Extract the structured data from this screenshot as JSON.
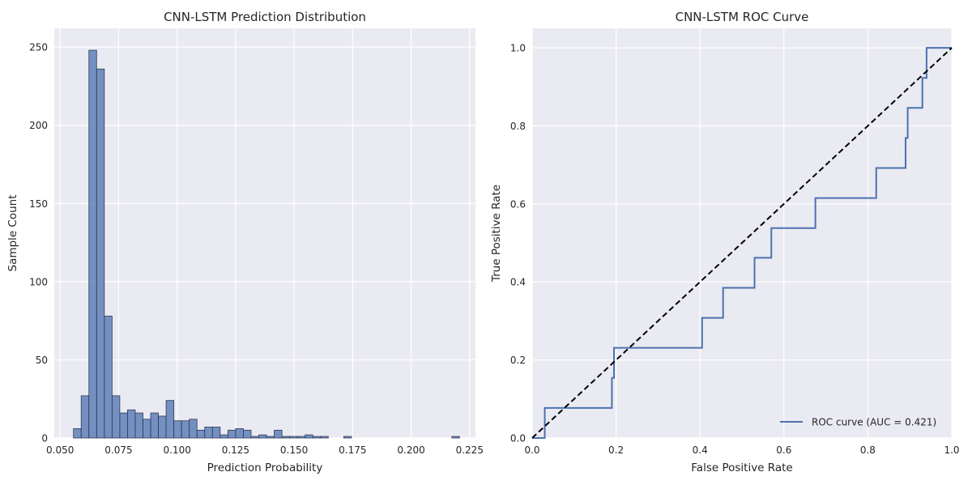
{
  "chart_data": [
    {
      "type": "bar",
      "title": "CNN-LSTM Prediction Distribution",
      "xlabel": "Prediction Probability",
      "ylabel": "Sample Count",
      "xlim": [
        0.0475,
        0.2275
      ],
      "ylim": [
        0,
        262
      ],
      "xticks": [
        0.05,
        0.075,
        0.1,
        0.125,
        0.15,
        0.175,
        0.2,
        0.225
      ],
      "xtick_labels": [
        "0.050",
        "0.075",
        "0.100",
        "0.125",
        "0.150",
        "0.175",
        "0.200",
        "0.225"
      ],
      "yticks": [
        0,
        50,
        100,
        150,
        200,
        250
      ],
      "ytick_labels": [
        "0",
        "50",
        "100",
        "150",
        "200",
        "250"
      ],
      "grid": true,
      "bin_edges": [
        0.0557,
        0.059,
        0.0623,
        0.0656,
        0.0689,
        0.0722,
        0.0755,
        0.0788,
        0.0821,
        0.0854,
        0.0887,
        0.092,
        0.0953,
        0.0986,
        0.1019,
        0.1052,
        0.1085,
        0.1118,
        0.1151,
        0.1184,
        0.1217,
        0.125,
        0.1283,
        0.1316,
        0.1349,
        0.1382,
        0.1415,
        0.1448,
        0.1481,
        0.1514,
        0.1547,
        0.158,
        0.1613,
        0.1646,
        0.1679,
        0.1712,
        0.1745,
        0.1778,
        0.1811,
        0.1844,
        0.1877,
        0.191,
        0.1943,
        0.1976,
        0.2009,
        0.2042,
        0.2075,
        0.2108,
        0.2141,
        0.2174,
        0.2207
      ],
      "values": [
        6,
        27,
        248,
        236,
        78,
        27,
        16,
        18,
        16,
        12,
        16,
        14,
        24,
        11,
        11,
        12,
        5,
        7,
        7,
        2,
        5,
        6,
        5,
        1,
        2,
        1,
        5,
        1,
        1,
        1,
        2,
        1,
        1,
        0,
        0,
        1,
        0,
        0,
        0,
        0,
        0,
        0,
        0,
        0,
        0,
        0,
        0,
        0,
        0,
        1
      ]
    },
    {
      "type": "line",
      "title": "CNN-LSTM ROC Curve",
      "xlabel": "False Positive Rate",
      "ylabel": "True Positive Rate",
      "xlim": [
        0,
        1
      ],
      "ylim": [
        0,
        1.05
      ],
      "xticks": [
        0,
        0.2,
        0.4,
        0.6,
        0.8,
        1.0
      ],
      "xtick_labels": [
        "0.0",
        "0.2",
        "0.4",
        "0.6",
        "0.8",
        "1.0"
      ],
      "yticks": [
        0,
        0.2,
        0.4,
        0.6,
        0.8,
        1.0
      ],
      "ytick_labels": [
        "0.0",
        "0.2",
        "0.4",
        "0.6",
        "0.8",
        "1.0"
      ],
      "grid": true,
      "legend_position": "lower-right",
      "series": [
        {
          "name": "ROC curve (AUC = 0.421)",
          "color": "#4c72b0",
          "x": [
            0,
            0.03,
            0.03,
            0.19,
            0.19,
            0.195,
            0.195,
            0.405,
            0.405,
            0.455,
            0.455,
            0.53,
            0.53,
            0.57,
            0.57,
            0.675,
            0.675,
            0.82,
            0.82,
            0.89,
            0.89,
            0.895,
            0.895,
            0.93,
            0.93,
            0.94,
            0.94,
            1.0
          ],
          "y": [
            0,
            0,
            0.077,
            0.077,
            0.154,
            0.154,
            0.231,
            0.231,
            0.308,
            0.308,
            0.385,
            0.385,
            0.462,
            0.462,
            0.538,
            0.538,
            0.615,
            0.615,
            0.692,
            0.692,
            0.769,
            0.769,
            0.846,
            0.846,
            0.923,
            0.923,
            1.0,
            1.0
          ]
        },
        {
          "name": "",
          "style": "dashed",
          "color": "#000000",
          "x": [
            0,
            1
          ],
          "y": [
            0,
            1
          ]
        }
      ]
    }
  ]
}
